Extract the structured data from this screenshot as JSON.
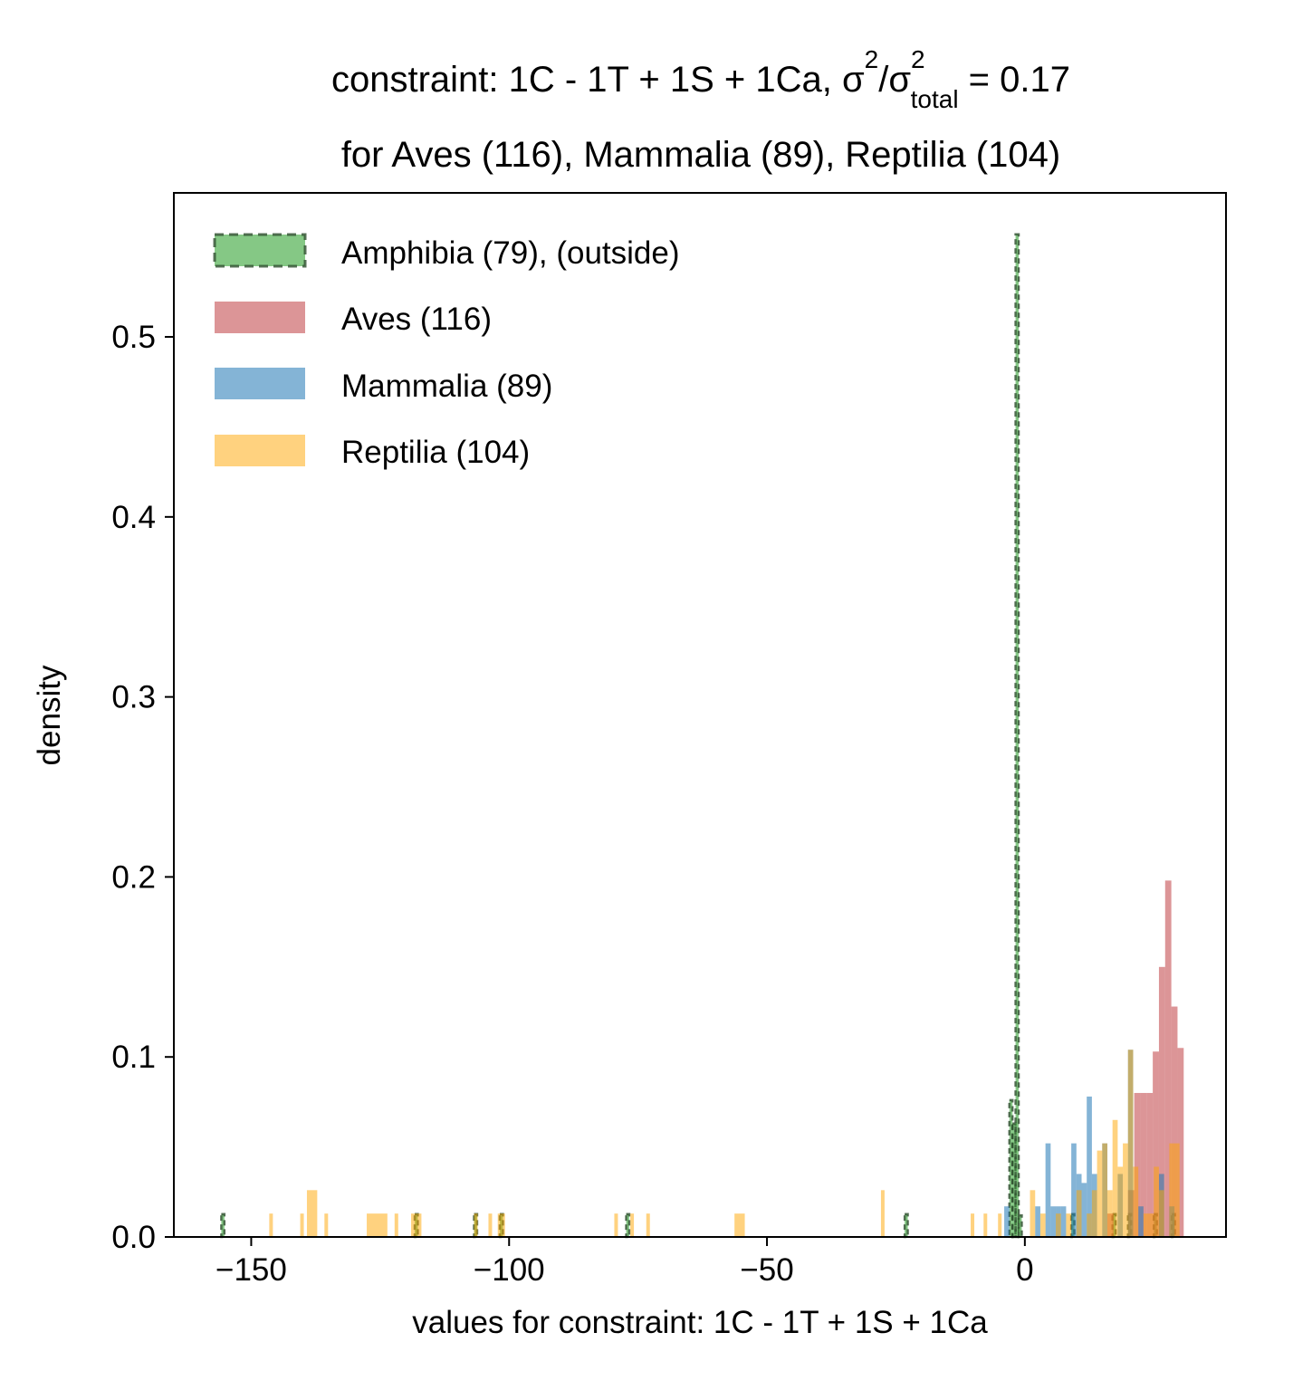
{
  "colors": {
    "amphibia": "#2ca02c",
    "amphibia_edge": "#2f4f2f",
    "aves": "#c44e52",
    "mammalia": "#1f77b4",
    "reptilia": "#ffa500"
  },
  "chart_data": {
    "type": "histogram",
    "title": {
      "line1_prefix": "constraint: 1C - 1T + 1S + 1Ca, σ",
      "sup1": "2",
      "mid": "/σ",
      "sup2": "2",
      "sub": "total",
      "suffix": " =  0.17",
      "line2": "for Aves (116), Mammalia (89), Reptilia (104)"
    },
    "xlabel": "values for constraint: 1C - 1T + 1S + 1Ca",
    "ylabel": "density",
    "xlim": [
      -165,
      39
    ],
    "ylim": [
      0,
      0.58
    ],
    "x_ticks": [
      {
        "value": -150,
        "label": "−150"
      },
      {
        "value": -100,
        "label": "−100"
      },
      {
        "value": -50,
        "label": "−50"
      },
      {
        "value": 0,
        "label": "0"
      }
    ],
    "y_ticks": [
      {
        "value": 0.0,
        "label": "0.0"
      },
      {
        "value": 0.1,
        "label": "0.1"
      },
      {
        "value": 0.2,
        "label": "0.2"
      },
      {
        "value": 0.3,
        "label": "0.3"
      },
      {
        "value": 0.4,
        "label": "0.4"
      },
      {
        "value": 0.5,
        "label": "0.5"
      }
    ],
    "grid": false,
    "legend_position": "top-left",
    "series": [
      {
        "name": "Amphibia (79), (outside)",
        "color_key": "amphibia",
        "style": "dashed-edge",
        "bars": [
          {
            "x0": -155.8,
            "x1": -155.2,
            "h": 0.0127
          },
          {
            "x0": -118.3,
            "x1": -117.7,
            "h": 0.0127
          },
          {
            "x0": -106.8,
            "x1": -106.2,
            "h": 0.0127
          },
          {
            "x0": -101.8,
            "x1": -101.2,
            "h": 0.0127
          },
          {
            "x0": -77.3,
            "x1": -76.7,
            "h": 0.0127
          },
          {
            "x0": -23.3,
            "x1": -22.7,
            "h": 0.0127
          },
          {
            "x0": -3.0,
            "x1": -2.4,
            "h": 0.076
          },
          {
            "x0": -2.4,
            "x1": -1.8,
            "h": 0.063
          },
          {
            "x0": -1.8,
            "x1": -1.2,
            "h": 0.557
          },
          {
            "x0": -1.2,
            "x1": -0.6,
            "h": 0.012
          },
          {
            "x0": 9.0,
            "x1": 9.6,
            "h": 0.0127
          },
          {
            "x0": 17.0,
            "x1": 17.6,
            "h": 0.0127
          },
          {
            "x0": 20.0,
            "x1": 20.6,
            "h": 0.0127
          },
          {
            "x0": 25.0,
            "x1": 25.6,
            "h": 0.0127
          },
          {
            "x0": 28.5,
            "x1": 29.1,
            "h": 0.0127
          }
        ]
      },
      {
        "name": "Aves (116)",
        "color_key": "aves",
        "style": "filled",
        "bars": [
          {
            "x0": 16.0,
            "x1": 17.2,
            "h": 0.013
          },
          {
            "x0": 20.0,
            "x1": 21.2,
            "h": 0.026
          },
          {
            "x0": 21.2,
            "x1": 22.4,
            "h": 0.08
          },
          {
            "x0": 22.4,
            "x1": 23.6,
            "h": 0.08
          },
          {
            "x0": 23.6,
            "x1": 24.8,
            "h": 0.08
          },
          {
            "x0": 24.8,
            "x1": 26.0,
            "h": 0.103
          },
          {
            "x0": 26.0,
            "x1": 27.2,
            "h": 0.15
          },
          {
            "x0": 27.2,
            "x1": 28.4,
            "h": 0.198
          },
          {
            "x0": 28.4,
            "x1": 29.6,
            "h": 0.128
          },
          {
            "x0": 29.6,
            "x1": 30.8,
            "h": 0.105
          }
        ]
      },
      {
        "name": "Mammalia (89)",
        "color_key": "mammalia",
        "style": "filled",
        "bars": [
          {
            "x0": -4.0,
            "x1": -3.0,
            "h": 0.017
          },
          {
            "x0": 2.0,
            "x1": 3.0,
            "h": 0.017
          },
          {
            "x0": 4.0,
            "x1": 5.0,
            "h": 0.052
          },
          {
            "x0": 5.0,
            "x1": 6.0,
            "h": 0.017
          },
          {
            "x0": 6.0,
            "x1": 7.0,
            "h": 0.017
          },
          {
            "x0": 7.0,
            "x1": 8.0,
            "h": 0.017
          },
          {
            "x0": 9.0,
            "x1": 10.0,
            "h": 0.052
          },
          {
            "x0": 10.0,
            "x1": 11.0,
            "h": 0.035
          },
          {
            "x0": 11.0,
            "x1": 12.0,
            "h": 0.03
          },
          {
            "x0": 12.0,
            "x1": 13.0,
            "h": 0.078
          },
          {
            "x0": 13.0,
            "x1": 14.0,
            "h": 0.035
          },
          {
            "x0": 15.0,
            "x1": 16.0,
            "h": 0.052
          },
          {
            "x0": 18.0,
            "x1": 19.0,
            "h": 0.035
          },
          {
            "x0": 20.0,
            "x1": 21.0,
            "h": 0.104
          },
          {
            "x0": 22.0,
            "x1": 23.0,
            "h": 0.017
          },
          {
            "x0": 26.0,
            "x1": 27.0,
            "h": 0.035
          },
          {
            "x0": 28.0,
            "x1": 29.0,
            "h": 0.017
          }
        ]
      },
      {
        "name": "Reptilia (104)",
        "color_key": "reptilia",
        "style": "filled",
        "bars": [
          {
            "x0": -146.5,
            "x1": -145.8,
            "h": 0.013
          },
          {
            "x0": -140.5,
            "x1": -139.8,
            "h": 0.013
          },
          {
            "x0": -139.2,
            "x1": -137.2,
            "h": 0.026
          },
          {
            "x0": -135.8,
            "x1": -135.1,
            "h": 0.013
          },
          {
            "x0": -127.6,
            "x1": -123.6,
            "h": 0.013
          },
          {
            "x0": -122.2,
            "x1": -121.5,
            "h": 0.013
          },
          {
            "x0": -119.0,
            "x1": -117.0,
            "h": 0.013
          },
          {
            "x0": -106.8,
            "x1": -106.1,
            "h": 0.013
          },
          {
            "x0": -104.0,
            "x1": -103.3,
            "h": 0.013
          },
          {
            "x0": -102.2,
            "x1": -100.8,
            "h": 0.013
          },
          {
            "x0": -79.6,
            "x1": -78.9,
            "h": 0.013
          },
          {
            "x0": -76.5,
            "x1": -75.8,
            "h": 0.013
          },
          {
            "x0": -73.4,
            "x1": -72.7,
            "h": 0.013
          },
          {
            "x0": -56.3,
            "x1": -54.3,
            "h": 0.013
          },
          {
            "x0": -27.9,
            "x1": -27.2,
            "h": 0.026
          },
          {
            "x0": -10.5,
            "x1": -9.8,
            "h": 0.013
          },
          {
            "x0": -8.0,
            "x1": -7.3,
            "h": 0.013
          },
          {
            "x0": -5.2,
            "x1": -4.5,
            "h": 0.013
          },
          {
            "x0": 1.0,
            "x1": 2.0,
            "h": 0.026
          },
          {
            "x0": 3.0,
            "x1": 4.0,
            "h": 0.013
          },
          {
            "x0": 6.0,
            "x1": 7.0,
            "h": 0.013
          },
          {
            "x0": 8.0,
            "x1": 9.0,
            "h": 0.013
          },
          {
            "x0": 10.0,
            "x1": 11.0,
            "h": 0.026
          },
          {
            "x0": 12.0,
            "x1": 13.0,
            "h": 0.013
          },
          {
            "x0": 13.0,
            "x1": 14.0,
            "h": 0.026
          },
          {
            "x0": 14.0,
            "x1": 15.0,
            "h": 0.048
          },
          {
            "x0": 15.0,
            "x1": 16.0,
            "h": 0.052
          },
          {
            "x0": 16.0,
            "x1": 17.0,
            "h": 0.026
          },
          {
            "x0": 17.0,
            "x1": 18.0,
            "h": 0.065
          },
          {
            "x0": 18.0,
            "x1": 19.0,
            "h": 0.039
          },
          {
            "x0": 19.0,
            "x1": 20.0,
            "h": 0.052
          },
          {
            "x0": 20.0,
            "x1": 21.0,
            "h": 0.104
          },
          {
            "x0": 21.0,
            "x1": 22.0,
            "h": 0.039
          },
          {
            "x0": 23.0,
            "x1": 24.0,
            "h": 0.013
          },
          {
            "x0": 24.0,
            "x1": 25.0,
            "h": 0.013
          },
          {
            "x0": 25.0,
            "x1": 26.0,
            "h": 0.039
          },
          {
            "x0": 26.0,
            "x1": 27.0,
            "h": 0.026
          },
          {
            "x0": 28.0,
            "x1": 29.0,
            "h": 0.052
          },
          {
            "x0": 29.0,
            "x1": 30.0,
            "h": 0.052
          }
        ]
      }
    ]
  }
}
